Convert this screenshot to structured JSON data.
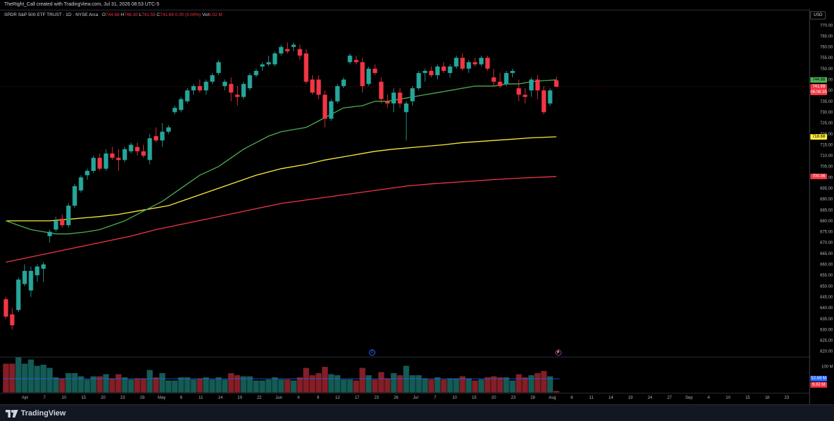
{
  "header": {
    "attribution": "TheRight_Call created with TradingView.com, Jul 31, 2026 08:53 UTC-5"
  },
  "legend": {
    "symbol": "SPDR S&P 500 ETF TRUST · 1D · NYSE Arca",
    "open_label": "O",
    "open": "744.68",
    "high_label": "H",
    "high": "746.30",
    "low_label": "L",
    "low": "741.55",
    "close_label": "C",
    "close": "741.69",
    "change": "0.00 (0.00%)",
    "vol_label": "Vol",
    "vol": "6.02 M"
  },
  "price_axis": {
    "currency": "USD",
    "labels": [
      "770.00",
      "765.00",
      "760.00",
      "755.00",
      "750.00",
      "745.00",
      "740.00",
      "735.00",
      "730.00",
      "725.00",
      "720.00",
      "715.00",
      "710.00",
      "705.00",
      "700.00",
      "695.00",
      "690.00",
      "685.00",
      "680.00",
      "675.00",
      "670.00",
      "665.00",
      "660.00",
      "655.00",
      "650.00",
      "645.00",
      "640.00",
      "635.00",
      "630.00",
      "625.00",
      "620.00"
    ],
    "tags": {
      "ma_green": {
        "text": "744.88",
        "color": "#4caf50"
      },
      "last_price": {
        "text": "741.69",
        "color": "#f23645"
      },
      "countdown": {
        "text": "06:06:35",
        "color": "#f23645"
      },
      "ma_yellow": {
        "text": "718.68",
        "color": "#ffeb3b"
      },
      "ma_red": {
        "text": "700.36",
        "color": "#f23645"
      }
    }
  },
  "volume_axis": {
    "labels": [
      "100 M"
    ],
    "tags": {
      "vol_ma": {
        "text": "52.69 M",
        "color": "#2962ff"
      },
      "vol_last": {
        "text": "6.02 M",
        "color": "#f23645"
      }
    }
  },
  "time_axis": {
    "labels": [
      "Apr",
      "7",
      "10",
      "15",
      "20",
      "23",
      "28",
      "May",
      "6",
      "11",
      "14",
      "19",
      "22",
      "Jun",
      "4",
      "9",
      "12",
      "17",
      "23",
      "26",
      "Jul",
      "7",
      "10",
      "15",
      "20",
      "23",
      "28",
      "Aug",
      "6",
      "11",
      "14",
      "19",
      "24",
      "27",
      "Sep",
      "4",
      "10",
      "15",
      "18",
      "23"
    ]
  },
  "events": {
    "dividend": "D",
    "earnings": "⚡"
  },
  "branding": {
    "logo_text": "TradingView"
  },
  "colors": {
    "up": "#26a69a",
    "down": "#f23645",
    "ma_short": "#4caf50",
    "ma_mid": "#ffeb3b",
    "ma_long": "#f23645",
    "volume_ma": "#2962ff"
  },
  "chart_data": {
    "type": "candlestick",
    "title": "SPDR S&P 500 ETF TRUST · 1D · NYSE Arca",
    "ylim": [
      618,
      772
    ],
    "candles": [
      {
        "date": "Apr 1",
        "o": 644,
        "h": 645,
        "l": 635,
        "c": 636
      },
      {
        "date": "Apr 2",
        "o": 637,
        "h": 640,
        "l": 630,
        "c": 632
      },
      {
        "date": "Apr 3",
        "o": 639,
        "h": 654,
        "l": 638,
        "c": 653
      },
      {
        "date": "Apr 4",
        "o": 651,
        "h": 660,
        "l": 650,
        "c": 657
      },
      {
        "date": "Apr 7",
        "o": 648,
        "h": 659,
        "l": 645,
        "c": 657
      },
      {
        "date": "Apr 8",
        "o": 655,
        "h": 660,
        "l": 652,
        "c": 659
      },
      {
        "date": "Apr 9",
        "o": 658,
        "h": 661,
        "l": 652,
        "c": 660
      },
      {
        "date": "Apr 10",
        "o": 673,
        "h": 676,
        "l": 670,
        "c": 675
      },
      {
        "date": "Apr 11",
        "o": 676,
        "h": 682,
        "l": 675,
        "c": 680
      },
      {
        "date": "Apr 14",
        "o": 681,
        "h": 683,
        "l": 677,
        "c": 678
      },
      {
        "date": "Apr 15",
        "o": 678,
        "h": 688,
        "l": 677,
        "c": 687
      },
      {
        "date": "Apr 16",
        "o": 687,
        "h": 697,
        "l": 686,
        "c": 696
      },
      {
        "date": "Apr 17",
        "o": 694,
        "h": 701,
        "l": 693,
        "c": 700
      },
      {
        "date": "Apr 18",
        "o": 701,
        "h": 704,
        "l": 699,
        "c": 703
      },
      {
        "date": "Apr 21",
        "o": 703,
        "h": 710,
        "l": 702,
        "c": 709
      },
      {
        "date": "Apr 22",
        "o": 709,
        "h": 711,
        "l": 703,
        "c": 704
      },
      {
        "date": "Apr 23",
        "o": 704,
        "h": 713,
        "l": 703,
        "c": 711
      },
      {
        "date": "Apr 24",
        "o": 711,
        "h": 714,
        "l": 708,
        "c": 709
      },
      {
        "date": "Apr 25",
        "o": 709,
        "h": 713,
        "l": 703,
        "c": 708
      },
      {
        "date": "Apr 28",
        "o": 708,
        "h": 714,
        "l": 707,
        "c": 713
      },
      {
        "date": "Apr 29",
        "o": 712,
        "h": 716,
        "l": 711,
        "c": 715
      },
      {
        "date": "Apr 30",
        "o": 714,
        "h": 716,
        "l": 710,
        "c": 712
      },
      {
        "date": "May 1",
        "o": 712,
        "h": 715,
        "l": 709,
        "c": 710
      },
      {
        "date": "May 2",
        "o": 708,
        "h": 720,
        "l": 706,
        "c": 718
      },
      {
        "date": "May 5",
        "o": 719,
        "h": 723,
        "l": 716,
        "c": 717
      },
      {
        "date": "May 6",
        "o": 717,
        "h": 725,
        "l": 714,
        "c": 721
      },
      {
        "date": "May 7",
        "o": 721,
        "h": 724,
        "l": 720,
        "c": 723
      },
      {
        "date": "May 8",
        "o": 730,
        "h": 733,
        "l": 729,
        "c": 732
      },
      {
        "date": "May 9",
        "o": 731,
        "h": 737,
        "l": 730,
        "c": 736
      },
      {
        "date": "May 12",
        "o": 735,
        "h": 741,
        "l": 734,
        "c": 740
      },
      {
        "date": "May 13",
        "o": 740,
        "h": 743,
        "l": 738,
        "c": 742
      },
      {
        "date": "May 14",
        "o": 742,
        "h": 745,
        "l": 739,
        "c": 740
      },
      {
        "date": "May 15",
        "o": 740,
        "h": 745,
        "l": 738,
        "c": 744
      },
      {
        "date": "May 16",
        "o": 744,
        "h": 748,
        "l": 743,
        "c": 747
      },
      {
        "date": "May 19",
        "o": 748,
        "h": 754,
        "l": 747,
        "c": 753
      },
      {
        "date": "May 20",
        "o": 742,
        "h": 745,
        "l": 740,
        "c": 744
      },
      {
        "date": "May 21",
        "o": 743,
        "h": 746,
        "l": 735,
        "c": 739
      },
      {
        "date": "May 22",
        "o": 738,
        "h": 742,
        "l": 733,
        "c": 737
      },
      {
        "date": "May 23",
        "o": 737,
        "h": 744,
        "l": 736,
        "c": 743
      },
      {
        "date": "May 27",
        "o": 741,
        "h": 748,
        "l": 740,
        "c": 747
      },
      {
        "date": "May 28",
        "o": 747,
        "h": 750,
        "l": 746,
        "c": 749
      },
      {
        "date": "May 29",
        "o": 751,
        "h": 753,
        "l": 749,
        "c": 752
      },
      {
        "date": "May 30",
        "o": 752,
        "h": 756,
        "l": 751,
        "c": 753
      },
      {
        "date": "Jun 2",
        "o": 752,
        "h": 758,
        "l": 751,
        "c": 757
      },
      {
        "date": "Jun 3",
        "o": 757,
        "h": 761,
        "l": 756,
        "c": 760
      },
      {
        "date": "Jun 4",
        "o": 759,
        "h": 762,
        "l": 757,
        "c": 758
      },
      {
        "date": "Jun 5",
        "o": 760,
        "h": 762,
        "l": 758,
        "c": 761
      },
      {
        "date": "Jun 6",
        "o": 759,
        "h": 761,
        "l": 754,
        "c": 756
      },
      {
        "date": "Jun 9",
        "o": 757,
        "h": 759,
        "l": 743,
        "c": 744
      },
      {
        "date": "Jun 10",
        "o": 745,
        "h": 747,
        "l": 738,
        "c": 739
      },
      {
        "date": "Jun 11",
        "o": 745,
        "h": 747,
        "l": 736,
        "c": 738
      },
      {
        "date": "Jun 12",
        "o": 738,
        "h": 740,
        "l": 723,
        "c": 727
      },
      {
        "date": "Jun 13",
        "o": 727,
        "h": 736,
        "l": 726,
        "c": 735
      },
      {
        "date": "Jun 16",
        "o": 735,
        "h": 743,
        "l": 734,
        "c": 742
      },
      {
        "date": "Jun 17",
        "o": 742,
        "h": 746,
        "l": 741,
        "c": 745
      },
      {
        "date": "Jun 18",
        "o": 753,
        "h": 757,
        "l": 752,
        "c": 756
      },
      {
        "date": "Jun 20",
        "o": 754,
        "h": 756,
        "l": 752,
        "c": 753
      },
      {
        "date": "Jun 23",
        "o": 753,
        "h": 755,
        "l": 739,
        "c": 742
      },
      {
        "date": "Jun 24",
        "o": 743,
        "h": 751,
        "l": 742,
        "c": 750
      },
      {
        "date": "Jun 25",
        "o": 750,
        "h": 752,
        "l": 747,
        "c": 748
      },
      {
        "date": "Jun 26",
        "o": 744,
        "h": 746,
        "l": 734,
        "c": 736
      },
      {
        "date": "Jun 27",
        "o": 735,
        "h": 738,
        "l": 732,
        "c": 734
      },
      {
        "date": "Jun 30",
        "o": 734,
        "h": 741,
        "l": 730,
        "c": 739
      },
      {
        "date": "Jul 1",
        "o": 739,
        "h": 741,
        "l": 732,
        "c": 734
      },
      {
        "date": "Jul 2",
        "o": 730,
        "h": 735,
        "l": 717,
        "c": 734
      },
      {
        "date": "Jul 3",
        "o": 735,
        "h": 742,
        "l": 733,
        "c": 741
      },
      {
        "date": "Jul 7",
        "o": 741,
        "h": 749,
        "l": 740,
        "c": 748
      },
      {
        "date": "Jul 8",
        "o": 748,
        "h": 750,
        "l": 744,
        "c": 749
      },
      {
        "date": "Jul 9",
        "o": 749,
        "h": 751,
        "l": 746,
        "c": 747
      },
      {
        "date": "Jul 10",
        "o": 747,
        "h": 752,
        "l": 745,
        "c": 751
      },
      {
        "date": "Jul 11",
        "o": 751,
        "h": 753,
        "l": 748,
        "c": 749
      },
      {
        "date": "Jul 14",
        "o": 748,
        "h": 752,
        "l": 746,
        "c": 751
      },
      {
        "date": "Jul 15",
        "o": 751,
        "h": 756,
        "l": 750,
        "c": 755
      },
      {
        "date": "Jul 16",
        "o": 755,
        "h": 757,
        "l": 749,
        "c": 750
      },
      {
        "date": "Jul 17",
        "o": 750,
        "h": 754,
        "l": 748,
        "c": 753
      },
      {
        "date": "Jul 18",
        "o": 753,
        "h": 755,
        "l": 751,
        "c": 752
      },
      {
        "date": "Jul 21",
        "o": 752,
        "h": 756,
        "l": 751,
        "c": 755
      },
      {
        "date": "Jul 22",
        "o": 755,
        "h": 756,
        "l": 749,
        "c": 750
      },
      {
        "date": "Jul 23",
        "o": 746,
        "h": 750,
        "l": 742,
        "c": 744
      },
      {
        "date": "Jul 24",
        "o": 744,
        "h": 748,
        "l": 741,
        "c": 742
      },
      {
        "date": "Jul 25",
        "o": 743,
        "h": 749,
        "l": 742,
        "c": 748
      },
      {
        "date": "Jul 28",
        "o": 748,
        "h": 750,
        "l": 746,
        "c": 749
      },
      {
        "date": "Jul 29",
        "o": 741,
        "h": 745,
        "l": 735,
        "c": 738
      },
      {
        "date": "Jul 30",
        "o": 738,
        "h": 741,
        "l": 734,
        "c": 737
      },
      {
        "date": "Jul 31",
        "o": 740,
        "h": 746,
        "l": 737,
        "c": 745
      },
      {
        "date": "Aug 1",
        "o": 745,
        "h": 747,
        "l": 736,
        "c": 740
      },
      {
        "date": "Aug 4",
        "o": 740,
        "h": 742,
        "l": 729,
        "c": 730
      },
      {
        "date": "Aug 5",
        "o": 734,
        "h": 741,
        "l": 733,
        "c": 740
      },
      {
        "date": "Aug 6",
        "o": 744.68,
        "h": 746.3,
        "l": 741.55,
        "c": 741.69
      }
    ],
    "ma_short": [
      680,
      678,
      676,
      675,
      674,
      674,
      675,
      676,
      678,
      680,
      683,
      686,
      689,
      693,
      697,
      701,
      705,
      709,
      713,
      716,
      719,
      721,
      722,
      723,
      726,
      729,
      732,
      733,
      735,
      735,
      736,
      737,
      738,
      739,
      740,
      741,
      742,
      742,
      743,
      743,
      744,
      744.5,
      744.88
    ],
    "ma_mid": [
      680,
      680,
      680,
      681,
      682,
      683,
      685,
      687,
      690,
      694,
      698,
      701,
      704,
      706,
      708,
      710,
      712,
      713,
      714,
      715,
      716,
      716.8,
      717.6,
      718.2,
      718.68
    ],
    "ma_long": [
      661,
      664,
      667,
      670,
      673,
      676,
      679,
      682,
      685,
      688,
      690,
      692,
      694,
      696,
      697,
      698,
      699,
      699.8,
      700.36
    ],
    "volume_ma": 52.69,
    "volume_max": 130
  }
}
